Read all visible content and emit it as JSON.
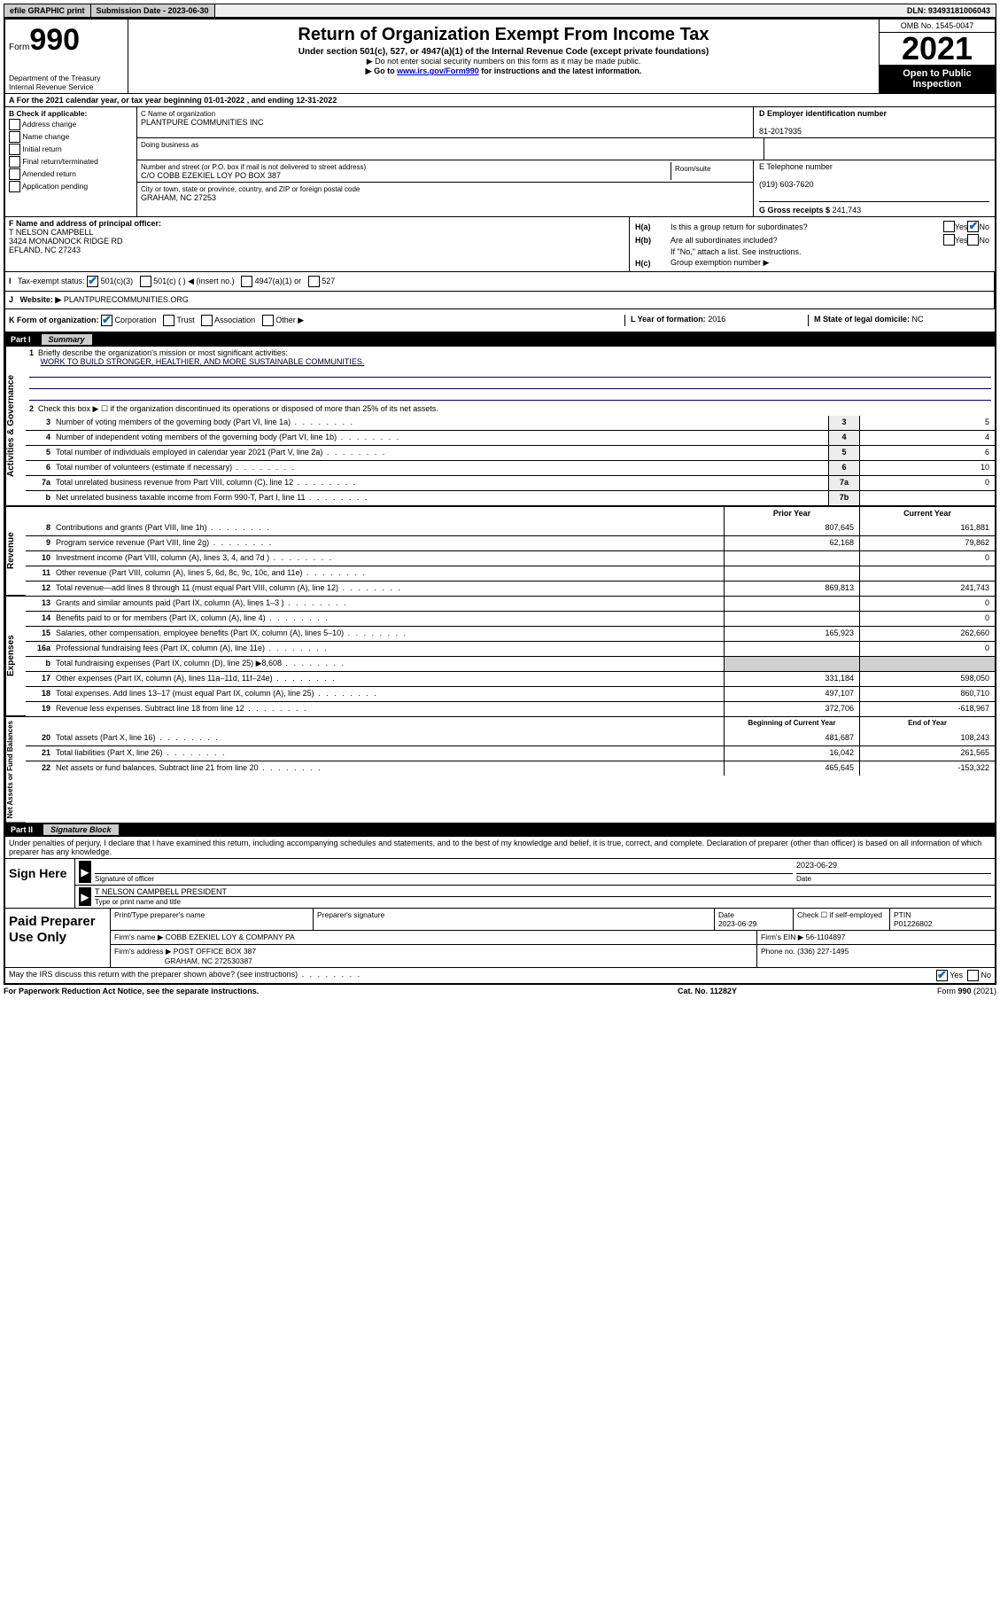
{
  "topbar": {
    "efile": "efile GRAPHIC print",
    "submission_label": "Submission Date - 2023-06-30",
    "dln": "DLN: 93493181006043"
  },
  "header": {
    "form_prefix": "Form",
    "form_number": "990",
    "dept": "Department of the Treasury",
    "irs": "Internal Revenue Service",
    "title": "Return of Organization Exempt From Income Tax",
    "subtitle": "Under section 501(c), 527, or 4947(a)(1) of the Internal Revenue Code (except private foundations)",
    "note1": "▶ Do not enter social security numbers on this form as it may be made public.",
    "note2_pre": "▶ Go to ",
    "note2_link": "www.irs.gov/Form990",
    "note2_post": " for instructions and the latest information.",
    "omb": "OMB No. 1545-0047",
    "year": "2021",
    "open": "Open to Public Inspection"
  },
  "lineA": "A For the 2021 calendar year, or tax year beginning 01-01-2022   , and ending 12-31-2022",
  "boxB": {
    "title": "B Check if applicable:",
    "opts": [
      "Address change",
      "Name change",
      "Initial return",
      "Final return/terminated",
      "Amended return",
      "Application pending"
    ]
  },
  "boxC": {
    "label": "C Name of organization",
    "name": "PLANTPURE COMMUNITIES INC",
    "dba_label": "Doing business as",
    "street_label": "Number and street (or P.O. box if mail is not delivered to street address)",
    "room_label": "Room/suite",
    "street": "C/O COBB EZEKIEL LOY PO BOX 387",
    "city_label": "City or town, state or province, country, and ZIP or foreign postal code",
    "city": "GRAHAM, NC  27253"
  },
  "boxD": {
    "label": "D Employer identification number",
    "value": "81-2017935"
  },
  "boxE": {
    "label": "E Telephone number",
    "value": "(919) 603-7620"
  },
  "boxG": {
    "label": "G Gross receipts $",
    "value": "241,743"
  },
  "boxF": {
    "label": "F Name and address of principal officer:",
    "name": "T NELSON CAMPBELL",
    "addr1": "3424 MONADNOCK RIDGE RD",
    "addr2": "EFLAND, NC  27243"
  },
  "boxH": {
    "ha": "Is this a group return for subordinates?",
    "hb": "Are all subordinates included?",
    "hb_note": "If \"No,\" attach a list. See instructions.",
    "hc": "Group exemption number ▶"
  },
  "rowI": {
    "label": "Tax-exempt status:",
    "opts": [
      "501(c)(3)",
      "501(c) (  ) ◀ (insert no.)",
      "4947(a)(1) or",
      "527"
    ]
  },
  "rowJ": {
    "label": "Website: ▶",
    "value": "PLANTPURECOMMUNITIES.ORG"
  },
  "rowK": {
    "label": "K Form of organization:",
    "opts": [
      "Corporation",
      "Trust",
      "Association",
      "Other ▶"
    ],
    "L_label": "L Year of formation:",
    "L_val": "2016",
    "M_label": "M State of legal domicile:",
    "M_val": "NC"
  },
  "parts": {
    "p1": "Part I",
    "p1_title": "Summary",
    "p2": "Part II",
    "p2_title": "Signature Block"
  },
  "summary": {
    "q1_label": "Briefly describe the organization's mission or most significant activities:",
    "q1_text": "WORK TO BUILD STRONGER, HEALTHIER, AND MORE SUSTAINABLE COMMUNITIES.",
    "q2": "Check this box ▶ ☐  if the organization discontinued its operations or disposed of more than 25% of its net assets.",
    "lines_gov": [
      {
        "n": "3",
        "d": "Number of voting members of the governing body (Part VI, line 1a)",
        "box": "3",
        "v": "5"
      },
      {
        "n": "4",
        "d": "Number of independent voting members of the governing body (Part VI, line 1b)",
        "box": "4",
        "v": "4"
      },
      {
        "n": "5",
        "d": "Total number of individuals employed in calendar year 2021 (Part V, line 2a)",
        "box": "5",
        "v": "6"
      },
      {
        "n": "6",
        "d": "Total number of volunteers (estimate if necessary)",
        "box": "6",
        "v": "10"
      },
      {
        "n": "7a",
        "d": "Total unrelated business revenue from Part VIII, column (C), line 12",
        "box": "7a",
        "v": "0"
      },
      {
        "n": "b",
        "d": "Net unrelated business taxable income from Form 990-T, Part I, line 11",
        "box": "7b",
        "v": ""
      }
    ],
    "col_prior": "Prior Year",
    "col_current": "Current Year",
    "lines_rev": [
      {
        "n": "8",
        "d": "Contributions and grants (Part VIII, line 1h)",
        "p": "807,645",
        "c": "161,881"
      },
      {
        "n": "9",
        "d": "Program service revenue (Part VIII, line 2g)",
        "p": "62,168",
        "c": "79,862"
      },
      {
        "n": "10",
        "d": "Investment income (Part VIII, column (A), lines 3, 4, and 7d )",
        "p": "",
        "c": "0"
      },
      {
        "n": "11",
        "d": "Other revenue (Part VIII, column (A), lines 5, 6d, 8c, 9c, 10c, and 11e)",
        "p": "",
        "c": ""
      },
      {
        "n": "12",
        "d": "Total revenue—add lines 8 through 11 (must equal Part VIII, column (A), line 12)",
        "p": "869,813",
        "c": "241,743"
      }
    ],
    "lines_exp": [
      {
        "n": "13",
        "d": "Grants and similar amounts paid (Part IX, column (A), lines 1–3 )",
        "p": "",
        "c": "0"
      },
      {
        "n": "14",
        "d": "Benefits paid to or for members (Part IX, column (A), line 4)",
        "p": "",
        "c": "0"
      },
      {
        "n": "15",
        "d": "Salaries, other compensation, employee benefits (Part IX, column (A), lines 5–10)",
        "p": "165,923",
        "c": "262,660"
      },
      {
        "n": "16a",
        "d": "Professional fundraising fees (Part IX, column (A), line 11e)",
        "p": "",
        "c": "0"
      },
      {
        "n": "b",
        "d": "Total fundraising expenses (Part IX, column (D), line 25) ▶8,608",
        "p": "shade",
        "c": "shade"
      },
      {
        "n": "17",
        "d": "Other expenses (Part IX, column (A), lines 11a–11d, 11f–24e)",
        "p": "331,184",
        "c": "598,050"
      },
      {
        "n": "18",
        "d": "Total expenses. Add lines 13–17 (must equal Part IX, column (A), line 25)",
        "p": "497,107",
        "c": "860,710"
      },
      {
        "n": "19",
        "d": "Revenue less expenses. Subtract line 18 from line 12",
        "p": "372,706",
        "c": "-618,967"
      }
    ],
    "col_begin": "Beginning of Current Year",
    "col_end": "End of Year",
    "lines_net": [
      {
        "n": "20",
        "d": "Total assets (Part X, line 16)",
        "p": "481,687",
        "c": "108,243"
      },
      {
        "n": "21",
        "d": "Total liabilities (Part X, line 26)",
        "p": "16,042",
        "c": "261,565"
      },
      {
        "n": "22",
        "d": "Net assets or fund balances. Subtract line 21 from line 20",
        "p": "465,645",
        "c": "-153,322"
      }
    ],
    "tabs": {
      "gov": "Activities & Governance",
      "rev": "Revenue",
      "exp": "Expenses",
      "net": "Net Assets or Fund Balances"
    }
  },
  "penalties": "Under penalties of perjury, I declare that I have examined this return, including accompanying schedules and statements, and to the best of my knowledge and belief, it is true, correct, and complete. Declaration of preparer (other than officer) is based on all information of which preparer has any knowledge.",
  "sign": {
    "label": "Sign Here",
    "sig_officer": "Signature of officer",
    "date": "Date",
    "date_val": "2023-06-29",
    "name": "T NELSON CAMPBELL PRESIDENT",
    "name_label": "Type or print name and title"
  },
  "preparer": {
    "label": "Paid Preparer Use Only",
    "h_name": "Print/Type preparer's name",
    "h_sig": "Preparer's signature",
    "h_date": "Date",
    "date_val": "2023-06-29",
    "h_check": "Check ☐ if self-employed",
    "h_ptin": "PTIN",
    "ptin_val": "P01226802",
    "firm_name_l": "Firm's name    ▶",
    "firm_name": "COBB EZEKIEL LOY & COMPANY PA",
    "firm_ein_l": "Firm's EIN ▶",
    "firm_ein": "56-1104897",
    "firm_addr_l": "Firm's address ▶",
    "firm_addr1": "POST OFFICE BOX 387",
    "firm_addr2": "GRAHAM, NC  272530387",
    "phone_l": "Phone no.",
    "phone": "(336) 227-1495"
  },
  "footer": {
    "discuss": "May the IRS discuss this return with the preparer shown above? (see instructions)",
    "paperwork": "For Paperwork Reduction Act Notice, see the separate instructions.",
    "cat": "Cat. No. 11282Y",
    "form": "Form 990 (2021)"
  }
}
